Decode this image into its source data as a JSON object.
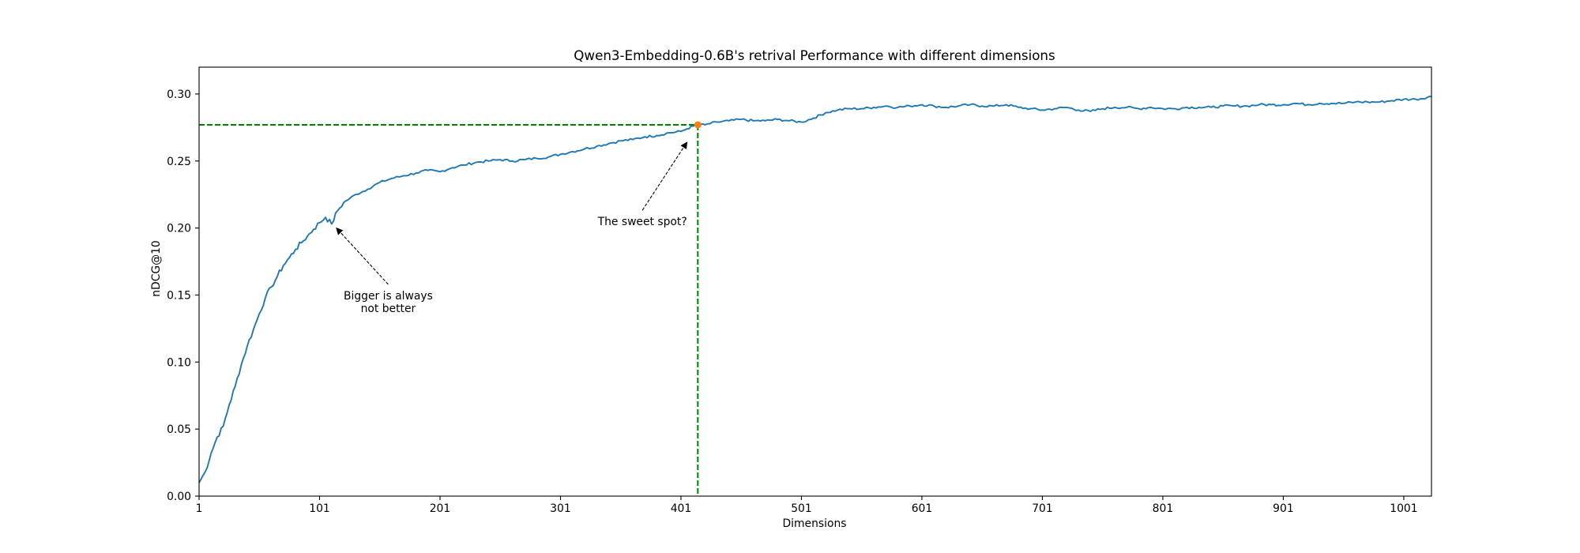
{
  "chart_data": {
    "type": "line",
    "title": "Qwen3-Embedding-0.6B's retrival Performance with different dimensions",
    "xlabel": "Dimensions",
    "ylabel": "nDCG@10",
    "xlim": [
      1,
      1024
    ],
    "ylim": [
      0.0,
      0.32
    ],
    "x_ticks": [
      1,
      101,
      201,
      301,
      401,
      501,
      601,
      701,
      801,
      901,
      1001
    ],
    "y_ticks": [
      0.0,
      0.05,
      0.1,
      0.15,
      0.2,
      0.25,
      0.3
    ],
    "grid": false,
    "series": [
      {
        "color": "#1f77b4",
        "x": [
          1,
          6,
          11,
          16,
          21,
          26,
          31,
          36,
          41,
          46,
          51,
          56,
          61,
          66,
          71,
          76,
          81,
          86,
          91,
          96,
          101,
          106,
          111,
          116,
          121,
          126,
          131,
          141,
          151,
          161,
          171,
          181,
          191,
          201,
          211,
          221,
          231,
          241,
          251,
          261,
          271,
          281,
          291,
          301,
          311,
          321,
          331,
          341,
          351,
          361,
          371,
          381,
          391,
          401,
          406,
          411,
          415,
          421,
          431,
          441,
          451,
          461,
          471,
          481,
          491,
          501,
          511,
          521,
          531,
          541,
          551,
          561,
          571,
          581,
          591,
          601,
          611,
          621,
          631,
          641,
          651,
          661,
          671,
          681,
          691,
          701,
          711,
          721,
          731,
          741,
          751,
          761,
          771,
          781,
          791,
          801,
          811,
          821,
          831,
          841,
          851,
          861,
          871,
          881,
          891,
          901,
          911,
          921,
          931,
          941,
          951,
          961,
          971,
          981,
          991,
          1001,
          1011,
          1024
        ],
        "values": [
          0.01,
          0.018,
          0.032,
          0.044,
          0.052,
          0.068,
          0.082,
          0.098,
          0.112,
          0.124,
          0.136,
          0.148,
          0.156,
          0.164,
          0.172,
          0.178,
          0.184,
          0.189,
          0.194,
          0.199,
          0.204,
          0.208,
          0.203,
          0.213,
          0.219,
          0.222,
          0.225,
          0.229,
          0.234,
          0.237,
          0.239,
          0.241,
          0.243,
          0.242,
          0.245,
          0.247,
          0.249,
          0.25,
          0.251,
          0.25,
          0.251,
          0.252,
          0.253,
          0.255,
          0.257,
          0.259,
          0.261,
          0.263,
          0.265,
          0.266,
          0.268,
          0.269,
          0.271,
          0.272,
          0.274,
          0.276,
          0.277,
          0.277,
          0.279,
          0.28,
          0.281,
          0.28,
          0.28,
          0.281,
          0.28,
          0.279,
          0.282,
          0.286,
          0.288,
          0.289,
          0.289,
          0.29,
          0.291,
          0.29,
          0.291,
          0.292,
          0.291,
          0.29,
          0.291,
          0.292,
          0.291,
          0.291,
          0.292,
          0.29,
          0.289,
          0.288,
          0.289,
          0.29,
          0.288,
          0.287,
          0.289,
          0.29,
          0.29,
          0.289,
          0.29,
          0.289,
          0.289,
          0.29,
          0.29,
          0.29,
          0.291,
          0.291,
          0.291,
          0.292,
          0.292,
          0.292,
          0.293,
          0.292,
          0.293,
          0.293,
          0.293,
          0.294,
          0.294,
          0.294,
          0.295,
          0.296,
          0.296,
          0.298
        ]
      }
    ],
    "highlight_point": {
      "x": 415,
      "y": 0.277,
      "color": "#ff7f0e"
    },
    "reference_lines": {
      "color": "#008000",
      "vertical_x": 415,
      "horizontal_y": 0.277
    },
    "annotations": [
      {
        "lines": [
          "Bigger is always",
          "not better"
        ],
        "text_x": 158,
        "text_y": 0.145,
        "arrow_to_x": 115,
        "arrow_to_y": 0.2
      },
      {
        "lines": [
          "The sweet spot?"
        ],
        "text_x": 369,
        "text_y": 0.205,
        "arrow_to_x": 406,
        "arrow_to_y": 0.264
      }
    ]
  }
}
